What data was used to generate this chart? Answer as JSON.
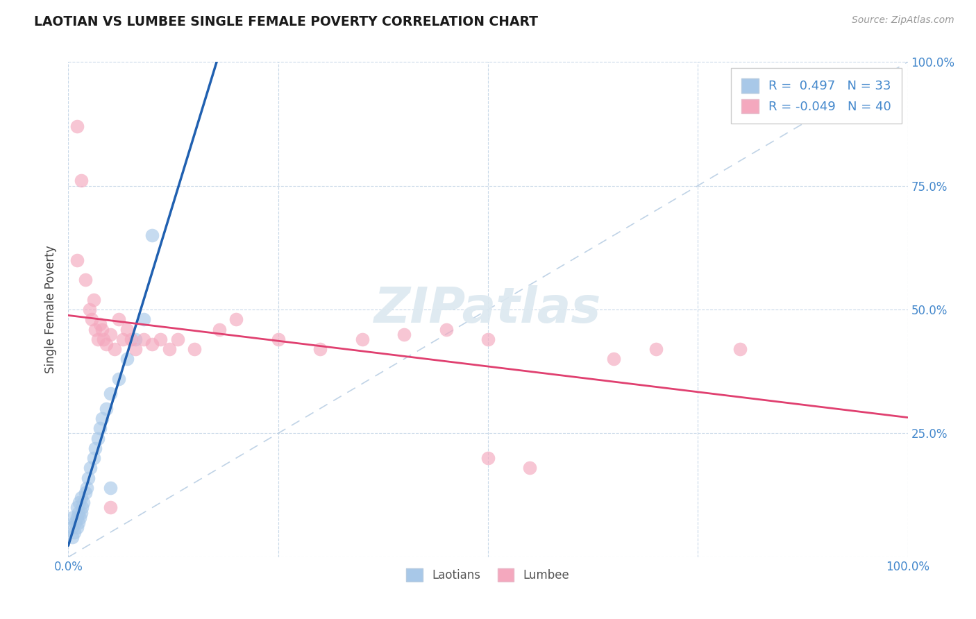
{
  "title": "LAOTIAN VS LUMBEE SINGLE FEMALE POVERTY CORRELATION CHART",
  "source_text": "Source: ZipAtlas.com",
  "ylabel": "Single Female Poverty",
  "laotian_R": 0.497,
  "laotian_N": 33,
  "lumbee_R": -0.049,
  "lumbee_N": 40,
  "laotian_color": "#a8c8e8",
  "lumbee_color": "#f4a8be",
  "laotian_line_color": "#2060b0",
  "lumbee_line_color": "#e04070",
  "ref_line_color": "#b0c8e0",
  "background_color": "#ffffff",
  "grid_color": "#c8d8e8",
  "tick_color": "#4488cc",
  "xlim": [
    0.0,
    1.0
  ],
  "ylim": [
    0.0,
    1.0
  ],
  "laotian_scatter": [
    [
      0.005,
      0.04
    ],
    [
      0.005,
      0.06
    ],
    [
      0.005,
      0.08
    ],
    [
      0.007,
      0.05
    ],
    [
      0.008,
      0.07
    ],
    [
      0.01,
      0.06
    ],
    [
      0.01,
      0.08
    ],
    [
      0.01,
      0.1
    ],
    [
      0.012,
      0.07
    ],
    [
      0.012,
      0.09
    ],
    [
      0.013,
      0.11
    ],
    [
      0.014,
      0.08
    ],
    [
      0.015,
      0.09
    ],
    [
      0.015,
      0.12
    ],
    [
      0.016,
      0.1
    ],
    [
      0.018,
      0.11
    ],
    [
      0.02,
      0.13
    ],
    [
      0.022,
      0.14
    ],
    [
      0.024,
      0.16
    ],
    [
      0.026,
      0.18
    ],
    [
      0.03,
      0.2
    ],
    [
      0.032,
      0.22
    ],
    [
      0.035,
      0.24
    ],
    [
      0.038,
      0.26
    ],
    [
      0.04,
      0.28
    ],
    [
      0.045,
      0.3
    ],
    [
      0.05,
      0.33
    ],
    [
      0.06,
      0.36
    ],
    [
      0.07,
      0.4
    ],
    [
      0.08,
      0.44
    ],
    [
      0.09,
      0.48
    ],
    [
      0.1,
      0.65
    ],
    [
      0.05,
      0.14
    ]
  ],
  "lumbee_scatter": [
    [
      0.01,
      0.87
    ],
    [
      0.015,
      0.76
    ],
    [
      0.01,
      0.6
    ],
    [
      0.02,
      0.56
    ],
    [
      0.025,
      0.5
    ],
    [
      0.028,
      0.48
    ],
    [
      0.03,
      0.52
    ],
    [
      0.032,
      0.46
    ],
    [
      0.035,
      0.44
    ],
    [
      0.038,
      0.47
    ],
    [
      0.04,
      0.46
    ],
    [
      0.042,
      0.44
    ],
    [
      0.045,
      0.43
    ],
    [
      0.05,
      0.45
    ],
    [
      0.055,
      0.42
    ],
    [
      0.06,
      0.48
    ],
    [
      0.065,
      0.44
    ],
    [
      0.07,
      0.46
    ],
    [
      0.075,
      0.44
    ],
    [
      0.08,
      0.42
    ],
    [
      0.09,
      0.44
    ],
    [
      0.1,
      0.43
    ],
    [
      0.11,
      0.44
    ],
    [
      0.12,
      0.42
    ],
    [
      0.13,
      0.44
    ],
    [
      0.15,
      0.42
    ],
    [
      0.18,
      0.46
    ],
    [
      0.2,
      0.48
    ],
    [
      0.25,
      0.44
    ],
    [
      0.3,
      0.42
    ],
    [
      0.35,
      0.44
    ],
    [
      0.4,
      0.45
    ],
    [
      0.45,
      0.46
    ],
    [
      0.5,
      0.44
    ],
    [
      0.5,
      0.2
    ],
    [
      0.55,
      0.18
    ],
    [
      0.65,
      0.4
    ],
    [
      0.7,
      0.42
    ],
    [
      0.8,
      0.42
    ],
    [
      0.05,
      0.1
    ]
  ]
}
